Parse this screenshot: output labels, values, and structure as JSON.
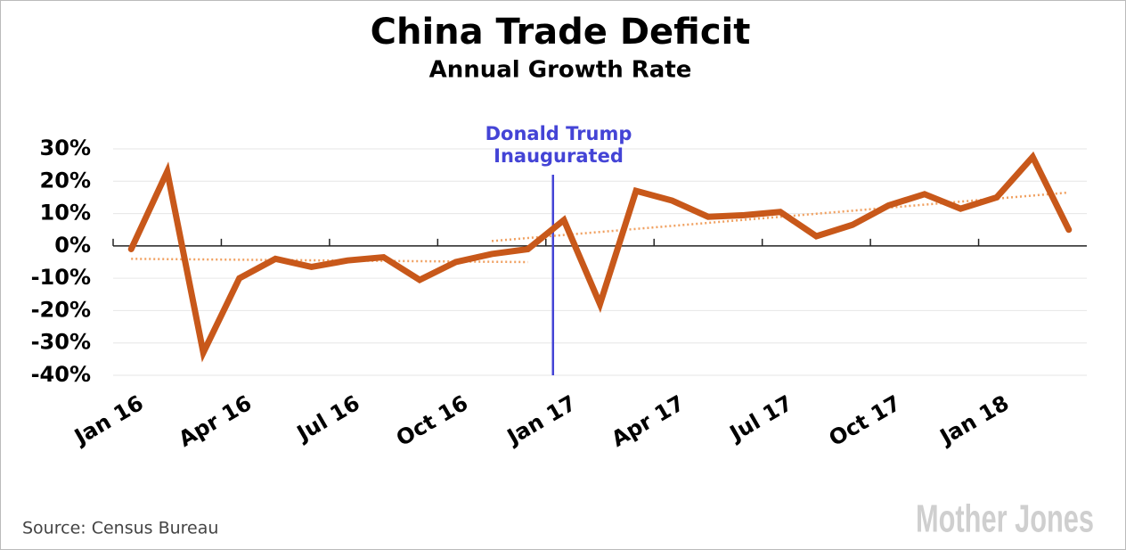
{
  "chart_data": {
    "type": "line",
    "title": "China Trade Deficit",
    "subtitle": "Annual Growth Rate",
    "categories": [
      "Jan 16",
      null,
      null,
      "Apr 16",
      null,
      null,
      "Jul 16",
      null,
      null,
      "Oct 16",
      null,
      null,
      "Jan 17",
      null,
      null,
      "Apr 17",
      null,
      null,
      "Jul 17",
      null,
      null,
      "Oct 17",
      null,
      null,
      "Jan 18",
      null,
      null
    ],
    "series": [
      {
        "name": "Annual growth rate",
        "color": "#c8581a",
        "values": [
          -1,
          23,
          -33,
          -10,
          -4,
          -6.5,
          -4.5,
          -3.5,
          -10.5,
          -5,
          -2.5,
          -1,
          8,
          -18,
          17,
          14,
          9,
          9.5,
          10.5,
          3,
          6.5,
          12.5,
          16,
          11.5,
          15,
          27.5,
          5
        ]
      }
    ],
    "trends": [
      {
        "color": "#f0a060",
        "from": 0,
        "to": 11,
        "values": [
          -4,
          -5
        ]
      },
      {
        "color": "#f0a060",
        "from": 10,
        "to": 26,
        "values": [
          1.5,
          16.5
        ]
      }
    ],
    "annotation": {
      "lines": [
        "Donald Trump",
        "Inaugurated"
      ],
      "at": "Jan 17",
      "color": "#4444d6"
    },
    "ylim": [
      -40,
      30
    ],
    "yticks": [
      {
        "value": -40,
        "label": "-40%"
      },
      {
        "value": -30,
        "label": "-30%"
      },
      {
        "value": -20,
        "label": "-20%"
      },
      {
        "value": -10,
        "label": "-10%"
      },
      {
        "value": 0,
        "label": "0%"
      },
      {
        "value": 10,
        "label": "10%"
      },
      {
        "value": 20,
        "label": "20%"
      },
      {
        "value": 30,
        "label": "30%"
      }
    ],
    "grid": true,
    "source": "Source:  Census Bureau",
    "logo": "Mother Jones"
  }
}
